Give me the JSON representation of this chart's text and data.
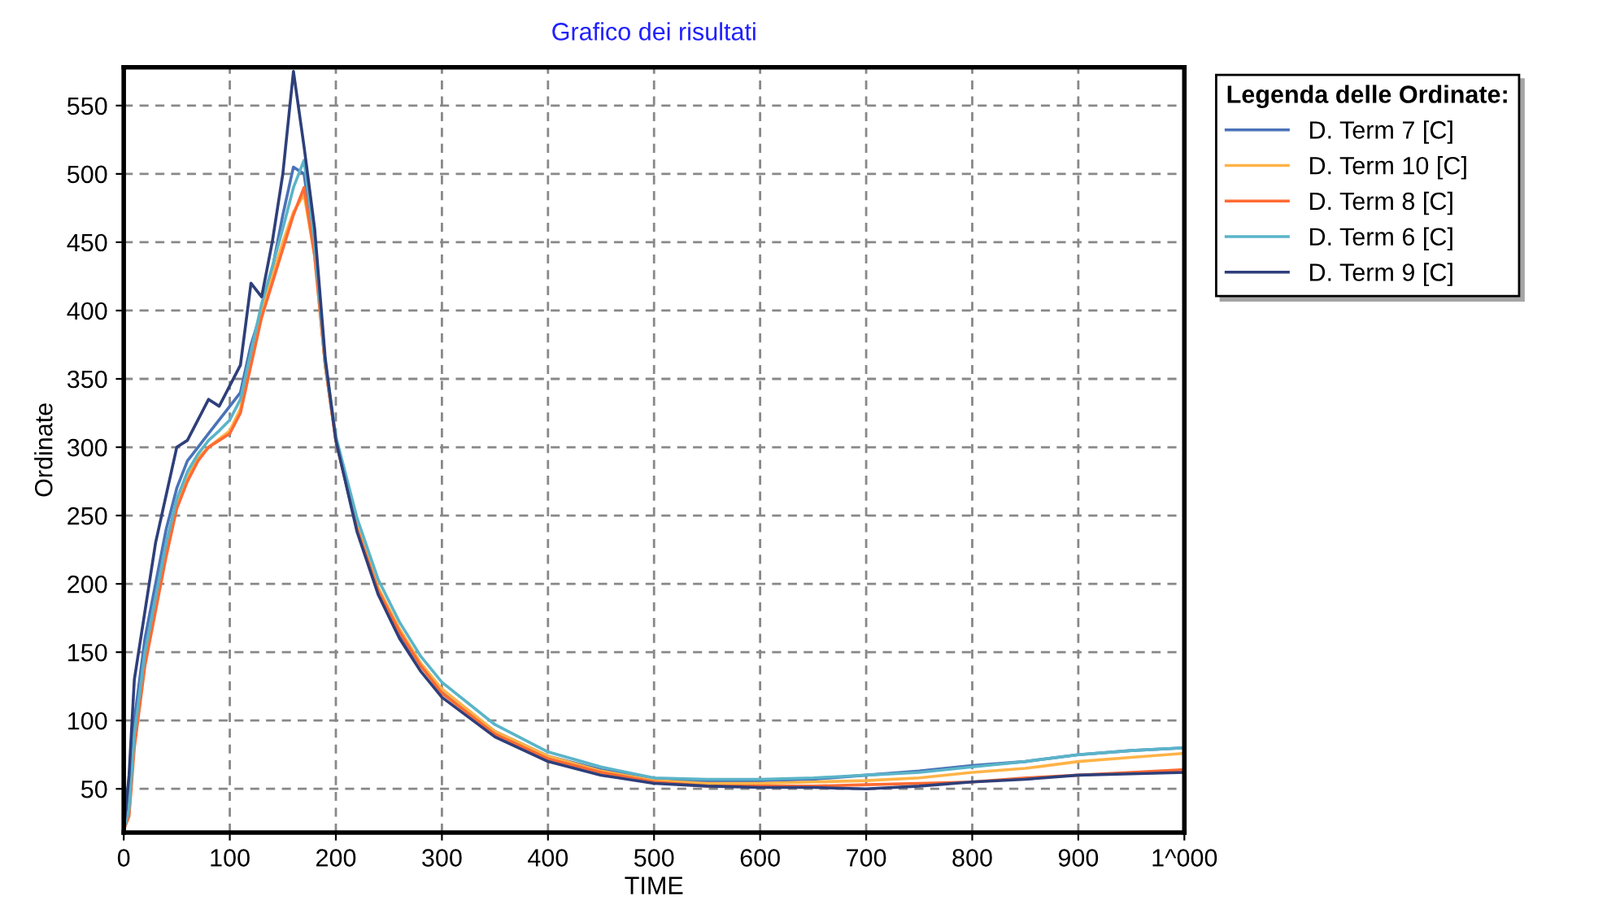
{
  "chart_data": {
    "type": "line",
    "title": "Grafico dei risultati",
    "xlabel": "TIME",
    "ylabel": "Ordinate",
    "legend_title": "Legenda delle Ordinate:",
    "x": [
      0,
      5,
      10,
      20,
      30,
      40,
      50,
      60,
      70,
      80,
      90,
      100,
      110,
      120,
      130,
      140,
      150,
      160,
      170,
      180,
      190,
      200,
      220,
      240,
      260,
      280,
      300,
      350,
      400,
      450,
      500,
      550,
      600,
      650,
      700,
      750,
      800,
      850,
      900,
      950,
      1000
    ],
    "series": [
      {
        "name": "D. Term 7 [C]",
        "color": "#4a72b8",
        "values": [
          20,
          40,
          100,
          160,
          200,
          240,
          270,
          290,
          300,
          310,
          320,
          330,
          340,
          375,
          400,
          430,
          470,
          505,
          500,
          445,
          360,
          305,
          240,
          195,
          163,
          140,
          122,
          92,
          74,
          64,
          57,
          55,
          56,
          57,
          60,
          63,
          67,
          70,
          75,
          78,
          80
        ]
      },
      {
        "name": "D. Term 10 [C]",
        "color": "#ffb347",
        "values": [
          20,
          32,
          85,
          145,
          185,
          225,
          258,
          278,
          292,
          300,
          306,
          312,
          328,
          362,
          398,
          425,
          450,
          472,
          485,
          440,
          360,
          305,
          242,
          197,
          167,
          142,
          123,
          92,
          74,
          63,
          56,
          54,
          54,
          55,
          56,
          58,
          62,
          65,
          70,
          73,
          76
        ]
      },
      {
        "name": "D. Term 8 [C]",
        "color": "#ff6a33",
        "values": [
          20,
          30,
          80,
          140,
          180,
          220,
          255,
          275,
          290,
          300,
          305,
          310,
          325,
          360,
          395,
          420,
          445,
          470,
          490,
          440,
          360,
          305,
          240,
          195,
          165,
          140,
          120,
          90,
          72,
          62,
          55,
          52,
          52,
          52,
          53,
          54,
          55,
          58,
          60,
          62,
          64
        ]
      },
      {
        "name": "D. Term 6 [C]",
        "color": "#5ab4c8",
        "values": [
          20,
          35,
          90,
          150,
          190,
          230,
          262,
          282,
          295,
          305,
          312,
          320,
          335,
          370,
          405,
          432,
          460,
          490,
          510,
          450,
          362,
          308,
          248,
          203,
          172,
          147,
          128,
          97,
          77,
          66,
          58,
          57,
          57,
          58,
          60,
          62,
          66,
          70,
          75,
          78,
          80
        ]
      },
      {
        "name": "D. Term 9 [C]",
        "color": "#2e3f7a",
        "values": [
          20,
          60,
          130,
          180,
          230,
          265,
          300,
          305,
          320,
          335,
          330,
          345,
          360,
          420,
          410,
          450,
          500,
          575,
          520,
          460,
          365,
          305,
          238,
          192,
          160,
          136,
          117,
          88,
          70,
          60,
          54,
          52,
          51,
          51,
          50,
          52,
          55,
          57,
          60,
          61,
          62
        ]
      }
    ],
    "xlim": [
      0,
      1000
    ],
    "ylim": [
      18,
      578
    ],
    "xticks": [
      0,
      100,
      200,
      300,
      400,
      500,
      600,
      700,
      800,
      900,
      {
        "value": 1000,
        "label": "1^000"
      }
    ],
    "yticks": [
      50,
      100,
      150,
      200,
      250,
      300,
      350,
      400,
      450,
      500,
      550
    ],
    "grid": true,
    "legend": "right",
    "marker": "none",
    "line_style": "solid"
  }
}
